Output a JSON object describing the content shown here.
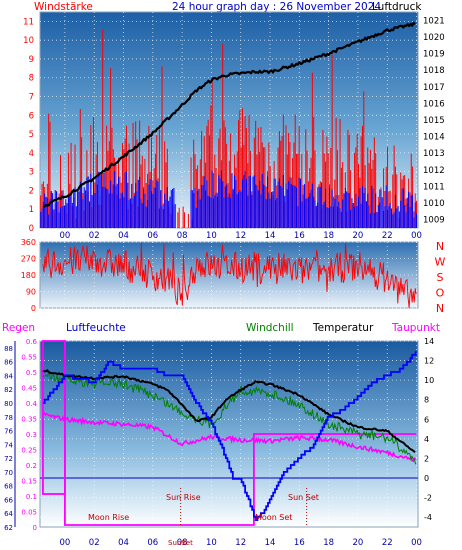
{
  "title": "24 hour graph day : 26 November 2024",
  "colors": {
    "wind": "#ff0000",
    "gust": "#0000ff",
    "pressure": "#000000",
    "wind_dir": "#ff0000",
    "temperature": "#000000",
    "windchill": "#008000",
    "humidity": "#0000ff",
    "dewpoint": "#ff00ff",
    "rain": "#ff00ff",
    "sun_moon": "#c00000"
  },
  "chart_data": [
    {
      "id": "wind_pressure",
      "type": "line",
      "left_label": "Windstärke",
      "right_label": "Luftdruck",
      "x_ticks": [
        "00",
        "02",
        "04",
        "06",
        "08",
        "10",
        "12",
        "14",
        "16",
        "18",
        "20",
        "22",
        "00"
      ],
      "y_left_ticks": [
        "0",
        "1",
        "2",
        "3",
        "4",
        "5",
        "6",
        "7",
        "8",
        "9",
        "10",
        "11"
      ],
      "y_right_ticks": [
        "1009",
        "1010",
        "1011",
        "1012",
        "1013",
        "1014",
        "1015",
        "1016",
        "1017",
        "1018",
        "1019",
        "1020",
        "1021"
      ],
      "ylim_left": [
        0,
        11.5
      ],
      "ylim_right": [
        1008.5,
        1021.5
      ],
      "grid": true,
      "series": [
        {
          "key": "pressure",
          "axis": "right",
          "x": [
            -1.5,
            0,
            2,
            4,
            6,
            8,
            9,
            10,
            11,
            12,
            13,
            14,
            16,
            18,
            20,
            22,
            24
          ],
          "values": [
            1009.8,
            1010.4,
            1011.5,
            1012.8,
            1014.2,
            1015.9,
            1016.8,
            1017.4,
            1017.7,
            1017.8,
            1017.9,
            1017.9,
            1018.4,
            1019.0,
            1019.7,
            1020.4,
            1020.8
          ]
        },
        {
          "key": "wind",
          "axis": "left",
          "x": [
            -1.5,
            0,
            2,
            4,
            6,
            8,
            10,
            12,
            14,
            16,
            18,
            20,
            22,
            24
          ],
          "values": [
            1.2,
            2,
            3.6,
            3.4,
            3.3,
            1.4,
            4,
            4.5,
            3.8,
            3.6,
            3.4,
            3.2,
            2.4,
            1.5
          ]
        },
        {
          "key": "gust",
          "axis": "left",
          "x": [
            -1.5,
            0,
            2,
            4,
            6,
            8,
            10,
            12,
            14,
            16,
            18,
            20,
            22,
            24
          ],
          "values": [
            1,
            1,
            2,
            2,
            1.5,
            1,
            2,
            2,
            1.8,
            1.6,
            1.4,
            1.2,
            1.2,
            1
          ]
        }
      ]
    },
    {
      "id": "wind_direction",
      "type": "line",
      "y_ticks": [
        "360",
        "270",
        "180",
        "90",
        "0"
      ],
      "right_labels": [
        "N",
        "W",
        "S",
        "O",
        "N"
      ],
      "ylim": [
        0,
        360
      ],
      "grid": true,
      "series": [
        {
          "key": "wind_dir",
          "x": [
            -1.5,
            0,
            2,
            4,
            6,
            7,
            8,
            9,
            10,
            12,
            14,
            16,
            18,
            20,
            22,
            23,
            24
          ],
          "values": [
            240,
            250,
            260,
            230,
            180,
            150,
            60,
            240,
            230,
            220,
            230,
            200,
            210,
            230,
            160,
            80,
            60
          ]
        }
      ]
    },
    {
      "id": "temp_humidity",
      "type": "line",
      "top_labels": {
        "rain": "Regen",
        "humidity": "Luftfeuchte",
        "windchill": "Windchill",
        "temperature": "Temperatur",
        "dewpoint": "Taupunkt"
      },
      "y_humidity_ticks": [
        "88",
        "86",
        "84",
        "82",
        "80",
        "78",
        "76",
        "74",
        "72",
        "70",
        "68",
        "66",
        "64",
        "62"
      ],
      "y_rain_ticks": [
        "0.6",
        "0.55",
        "0.5",
        "0.45",
        "0.4",
        "0.35",
        "0.3",
        "0.25",
        "0.2",
        "0.15",
        "0.1",
        "0.05",
        "0"
      ],
      "y_temp_ticks": [
        "14",
        "12",
        "10",
        "8",
        "6",
        "4",
        "2",
        "0",
        "-2",
        "-4"
      ],
      "ylim_humidity": [
        62,
        89
      ],
      "ylim_rain": [
        0,
        0.6
      ],
      "ylim_temp": [
        -5,
        14
      ],
      "x_ticks": [
        "00",
        "02",
        "04",
        "06",
        "08",
        "10",
        "12",
        "14",
        "16",
        "18",
        "20",
        "22",
        "00"
      ],
      "annotations": [
        "Moon Rise",
        "Sun Rise",
        "Sun Set",
        "Moon Set",
        "SunSet"
      ],
      "sun_rise_hour": 7.9,
      "sun_set_hour": 16.5,
      "moon_rise_hour": 0.1,
      "moon_set_hour": 12.9,
      "grid": true,
      "series": [
        {
          "key": "temperature",
          "axis": "temp",
          "x": [
            -1.5,
            0,
            2,
            4,
            6,
            7,
            8,
            9,
            10,
            11,
            12,
            13,
            14,
            16,
            18,
            20,
            22,
            24
          ],
          "values": [
            11,
            10.5,
            10.2,
            10.4,
            9.6,
            9.0,
            7.5,
            5.8,
            6.2,
            8.0,
            9.0,
            9.8,
            9.6,
            8.5,
            6.5,
            5.2,
            4.8,
            2.5
          ]
        },
        {
          "key": "windchill",
          "axis": "temp",
          "x": [
            -1.5,
            0,
            2,
            4,
            6,
            8,
            10,
            12,
            14,
            16,
            18,
            20,
            22,
            24
          ],
          "values": [
            11,
            10.5,
            10.2,
            10.1,
            9.0,
            7.2,
            6.0,
            9.5,
            9.2,
            8.0,
            6.0,
            5.0,
            4.6,
            2.3
          ]
        },
        {
          "key": "humidity",
          "axis": "humidity",
          "x": [
            -1.5,
            0,
            2,
            3,
            4,
            6,
            7,
            8,
            9,
            10,
            11,
            11.5,
            12,
            12.5,
            13,
            13.5,
            14,
            15,
            16,
            17,
            18,
            19,
            20,
            21,
            22,
            23,
            24
          ],
          "values": [
            80,
            84,
            83,
            86,
            85,
            85,
            84,
            84,
            80,
            77,
            72,
            69,
            69,
            66,
            63,
            64,
            66,
            70,
            72,
            74,
            78,
            79,
            81,
            83,
            84,
            85,
            87.5
          ]
        },
        {
          "key": "dewpoint",
          "axis": "temp",
          "x": [
            -1.5,
            0,
            2,
            4,
            6,
            8,
            10,
            12,
            14,
            16,
            18,
            20,
            22,
            24
          ],
          "values": [
            6.5,
            6.0,
            5.7,
            5.5,
            5.2,
            3.5,
            4.2,
            3.9,
            3.8,
            4.1,
            3.9,
            3.2,
            2.6,
            1.8
          ]
        },
        {
          "key": "rain",
          "axis": "rain",
          "x": [
            -1.5,
            0,
            0.1,
            12.9,
            13,
            24
          ],
          "values": [
            0.6,
            0.6,
            0.6,
            0.0,
            0.3,
            0.3
          ]
        }
      ]
    }
  ]
}
